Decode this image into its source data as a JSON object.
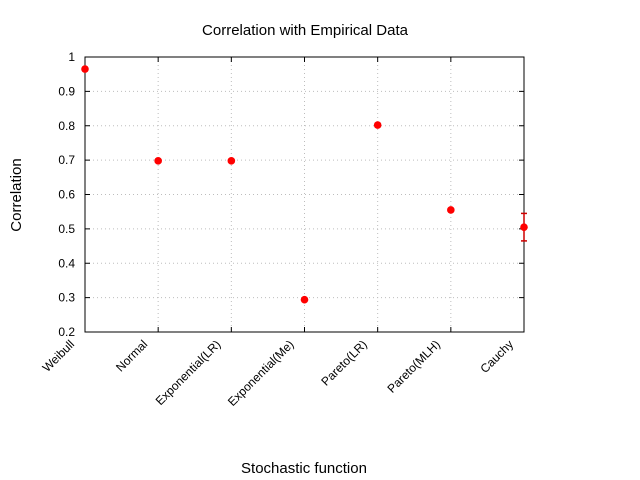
{
  "chart_data": {
    "type": "scatter",
    "title": "Correlation with Empirical Data",
    "xlabel": "Stochastic function",
    "ylabel": "Correlation",
    "categories": [
      "Weibull",
      "Normal",
      "Exponential(LR)",
      "Exponential(Me)",
      "Pareto(LR)",
      "Pareto(MLH)",
      "Cauchy"
    ],
    "values": [
      0.965,
      0.698,
      0.698,
      0.294,
      0.802,
      0.555,
      0.505
    ],
    "error_low": [
      0.96,
      0.695,
      0.695,
      0.291,
      0.797,
      0.552,
      0.465
    ],
    "error_high": [
      0.97,
      0.701,
      0.701,
      0.297,
      0.807,
      0.558,
      0.545
    ],
    "ylim": [
      0.2,
      1.0
    ],
    "yticks": [
      "0.2",
      "0.3",
      "0.4",
      "0.5",
      "0.6",
      "0.7",
      "0.8",
      "0.9",
      "1"
    ],
    "grid": true,
    "marker_color": "#ff0000",
    "errorbar_color": "#cc0000"
  }
}
